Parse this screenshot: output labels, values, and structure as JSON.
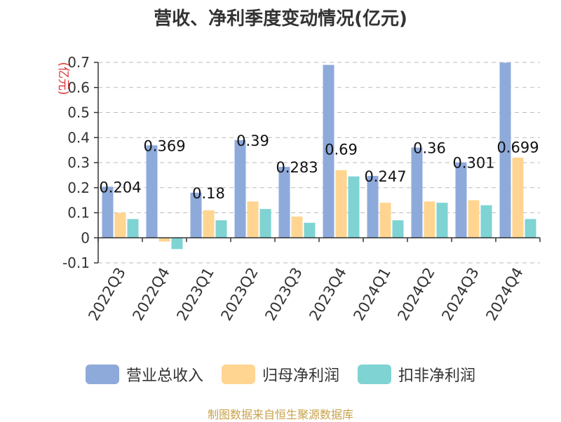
{
  "chart_data": {
    "type": "bar",
    "title": "营收、净利季度变动情况(亿元)",
    "ylabel": "(亿元)",
    "ylim": [
      -0.1,
      0.7
    ],
    "yticks": [
      "0.7",
      "0.6",
      "0.5",
      "0.4",
      "0.3",
      "0.2",
      "0.1",
      "0",
      "-0.1"
    ],
    "grid": true,
    "legend_position": "bottom",
    "categories": [
      "2022Q3",
      "2022Q4",
      "2023Q1",
      "2023Q2",
      "2023Q3",
      "2023Q4",
      "2024Q1",
      "2024Q2",
      "2024Q3",
      "2024Q4"
    ],
    "series": [
      {
        "name": "营业总收入",
        "color": "#8eaadb",
        "values": [
          0.204,
          0.369,
          0.18,
          0.39,
          0.283,
          0.69,
          0.247,
          0.36,
          0.301,
          0.699
        ],
        "labels": [
          "0.204",
          "0.369",
          "0.18",
          "0.39",
          "0.283",
          "0.69",
          "0.247",
          "0.36",
          "0.301",
          "0.699"
        ]
      },
      {
        "name": "归母净利润",
        "color": "#ffd591",
        "values": [
          0.1,
          -0.015,
          0.11,
          0.145,
          0.085,
          0.27,
          0.14,
          0.145,
          0.15,
          0.32
        ]
      },
      {
        "name": "扣非净利润",
        "color": "#7fd3d3",
        "values": [
          0.075,
          -0.045,
          0.07,
          0.115,
          0.06,
          0.245,
          0.07,
          0.14,
          0.13,
          0.075
        ]
      }
    ],
    "source": "制图数据来自恒生聚源数据库"
  }
}
